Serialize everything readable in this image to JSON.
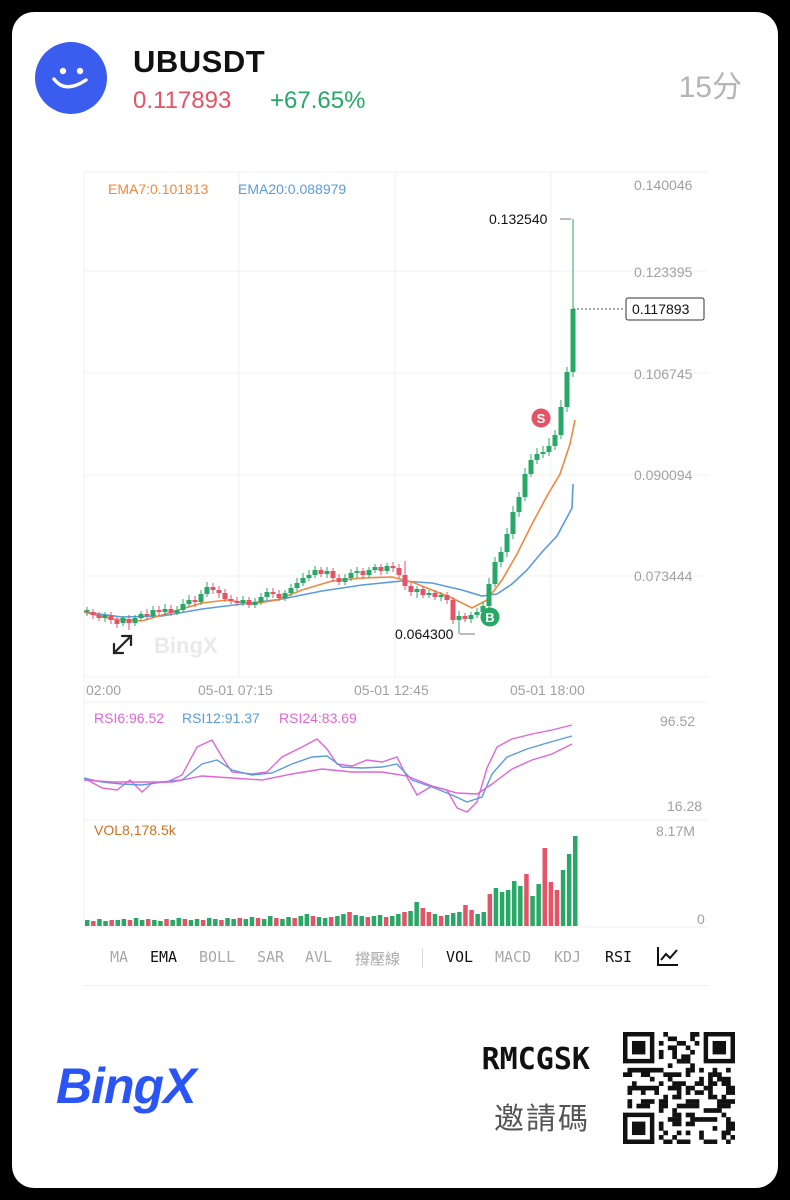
{
  "header": {
    "symbol": "UBUSDT",
    "price": "0.117893",
    "change": "+67.65%",
    "interval": "15分"
  },
  "colors": {
    "up": "#27a866",
    "down": "#e55367",
    "ema7": "#f0883e",
    "ema20": "#5b9bdc",
    "brand": "#2a54f5"
  },
  "chart": {
    "ema7_label": "EMA7:0.101813",
    "ema20_label": "EMA20:0.088979",
    "price_ticks": [
      "0.140046",
      "0.123395",
      "0.106745",
      "0.090094",
      "0.073444"
    ],
    "high_label": "0.132540",
    "low_label": "0.064300",
    "current_label": "0.117893",
    "time_ticks": [
      "02:00",
      "05-01 07:15",
      "05-01 12:45",
      "05-01 18:00"
    ],
    "buy_marker": "B",
    "sell_marker": "S",
    "watermark": "BingX"
  },
  "rsi": {
    "rsi6_label": "RSI6:96.52",
    "rsi12_label": "RSI12:91.37",
    "rsi24_label": "RSI24:83.69",
    "max_label": "96.52",
    "min_label": "16.28"
  },
  "volume": {
    "label": "VOL8,178.5k",
    "max_label": "8.17M",
    "min_label": "0"
  },
  "toolbar": {
    "main": [
      "MA",
      "EMA",
      "BOLL",
      "SAR",
      "AVL",
      "撐壓線"
    ],
    "sub": [
      "VOL",
      "MACD",
      "KDJ",
      "RSI"
    ],
    "active": [
      "EMA",
      "VOL",
      "RSI"
    ]
  },
  "footer": {
    "brand": "BingX",
    "invite_code": "RMCGSK",
    "invite_label": "邀請碼"
  }
}
